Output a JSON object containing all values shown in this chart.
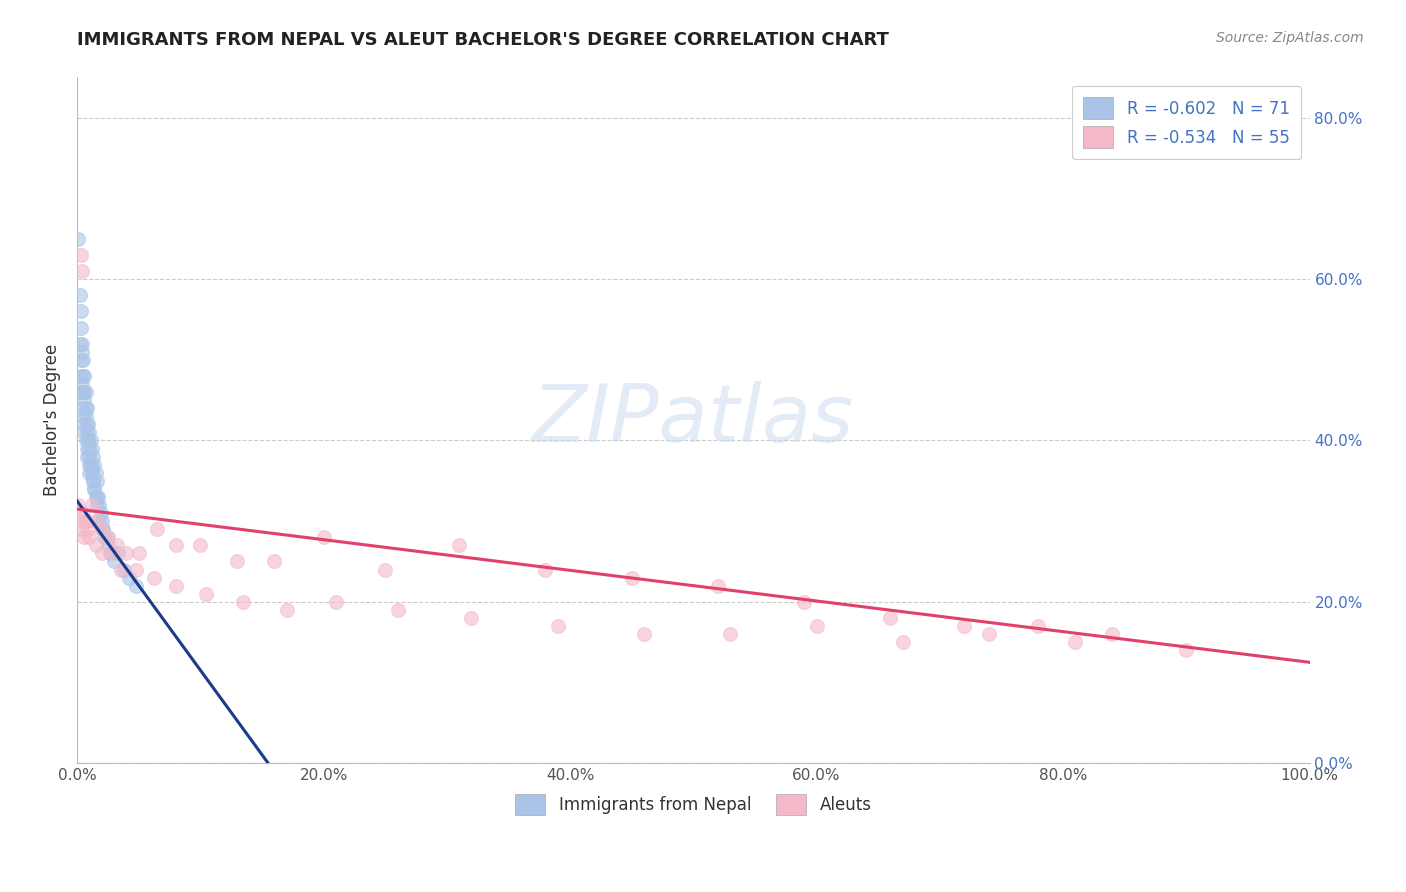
{
  "title": "IMMIGRANTS FROM NEPAL VS ALEUT BACHELOR'S DEGREE CORRELATION CHART",
  "source": "Source: ZipAtlas.com",
  "ylabel": "Bachelor's Degree",
  "xlim": [
    0.0,
    1.0
  ],
  "ylim": [
    0.0,
    0.85
  ],
  "xticks": [
    0.0,
    0.2,
    0.4,
    0.6,
    0.8,
    1.0
  ],
  "xticklabels": [
    "0.0%",
    "20.0%",
    "40.0%",
    "60.0%",
    "80.0%",
    "100.0%"
  ],
  "yticks": [
    0.0,
    0.2,
    0.4,
    0.6,
    0.8
  ],
  "yticklabels_right": [
    "0.0%",
    "20.0%",
    "40.0%",
    "60.0%",
    "80.0%"
  ],
  "nepal_r": "-0.602",
  "nepal_n": "71",
  "aleut_r": "-0.534",
  "aleut_n": "55",
  "nepal_color": "#aac4e8",
  "aleut_color": "#f4b8c8",
  "nepal_line_color": "#1a3a8a",
  "aleut_line_color": "#e0406a",
  "background_color": "#ffffff",
  "grid_color": "#cccccc",
  "legend_text_color": "#4472c4",
  "nepal_scatter_x": [
    0.001,
    0.002,
    0.002,
    0.003,
    0.003,
    0.003,
    0.004,
    0.004,
    0.005,
    0.005,
    0.005,
    0.006,
    0.006,
    0.006,
    0.007,
    0.007,
    0.007,
    0.008,
    0.008,
    0.008,
    0.009,
    0.009,
    0.01,
    0.01,
    0.01,
    0.011,
    0.011,
    0.012,
    0.012,
    0.013,
    0.013,
    0.014,
    0.014,
    0.015,
    0.015,
    0.016,
    0.017,
    0.018,
    0.019,
    0.02,
    0.021,
    0.022,
    0.024,
    0.025,
    0.027,
    0.03,
    0.033,
    0.038,
    0.042,
    0.048,
    0.002,
    0.003,
    0.004,
    0.005,
    0.006,
    0.007,
    0.008,
    0.009,
    0.01,
    0.011,
    0.012,
    0.014,
    0.016,
    0.018,
    0.02,
    0.004,
    0.006,
    0.008,
    0.01,
    0.013,
    0.016
  ],
  "nepal_scatter_y": [
    0.65,
    0.52,
    0.48,
    0.56,
    0.5,
    0.46,
    0.52,
    0.47,
    0.5,
    0.46,
    0.43,
    0.48,
    0.45,
    0.42,
    0.46,
    0.43,
    0.4,
    0.44,
    0.41,
    0.38,
    0.42,
    0.4,
    0.41,
    0.38,
    0.36,
    0.4,
    0.37,
    0.39,
    0.36,
    0.38,
    0.35,
    0.37,
    0.34,
    0.36,
    0.33,
    0.35,
    0.33,
    0.32,
    0.31,
    0.3,
    0.29,
    0.28,
    0.28,
    0.27,
    0.26,
    0.25,
    0.26,
    0.24,
    0.23,
    0.22,
    0.58,
    0.54,
    0.51,
    0.48,
    0.46,
    0.44,
    0.42,
    0.4,
    0.39,
    0.37,
    0.36,
    0.34,
    0.32,
    0.3,
    0.29,
    0.44,
    0.41,
    0.39,
    0.37,
    0.35,
    0.33
  ],
  "aleut_scatter_x": [
    0.001,
    0.002,
    0.003,
    0.005,
    0.007,
    0.009,
    0.012,
    0.015,
    0.02,
    0.025,
    0.032,
    0.04,
    0.05,
    0.065,
    0.08,
    0.1,
    0.13,
    0.16,
    0.2,
    0.25,
    0.31,
    0.38,
    0.45,
    0.52,
    0.59,
    0.66,
    0.72,
    0.78,
    0.84,
    0.9,
    0.003,
    0.004,
    0.006,
    0.008,
    0.01,
    0.015,
    0.02,
    0.028,
    0.036,
    0.048,
    0.062,
    0.08,
    0.105,
    0.135,
    0.17,
    0.21,
    0.26,
    0.32,
    0.39,
    0.46,
    0.53,
    0.6,
    0.67,
    0.74,
    0.81
  ],
  "aleut_scatter_y": [
    0.32,
    0.3,
    0.29,
    0.31,
    0.3,
    0.29,
    0.32,
    0.3,
    0.29,
    0.28,
    0.27,
    0.26,
    0.26,
    0.29,
    0.27,
    0.27,
    0.25,
    0.25,
    0.28,
    0.24,
    0.27,
    0.24,
    0.23,
    0.22,
    0.2,
    0.18,
    0.17,
    0.17,
    0.16,
    0.14,
    0.63,
    0.61,
    0.28,
    0.3,
    0.28,
    0.27,
    0.26,
    0.26,
    0.24,
    0.24,
    0.23,
    0.22,
    0.21,
    0.2,
    0.19,
    0.2,
    0.19,
    0.18,
    0.17,
    0.16,
    0.16,
    0.17,
    0.15,
    0.16,
    0.15
  ],
  "nepal_line_x0": 0.0,
  "nepal_line_x1": 0.155,
  "nepal_line_y0": 0.325,
  "nepal_line_y1": 0.0,
  "aleut_line_x0": 0.0,
  "aleut_line_x1": 1.0,
  "aleut_line_y0": 0.315,
  "aleut_line_y1": 0.125
}
